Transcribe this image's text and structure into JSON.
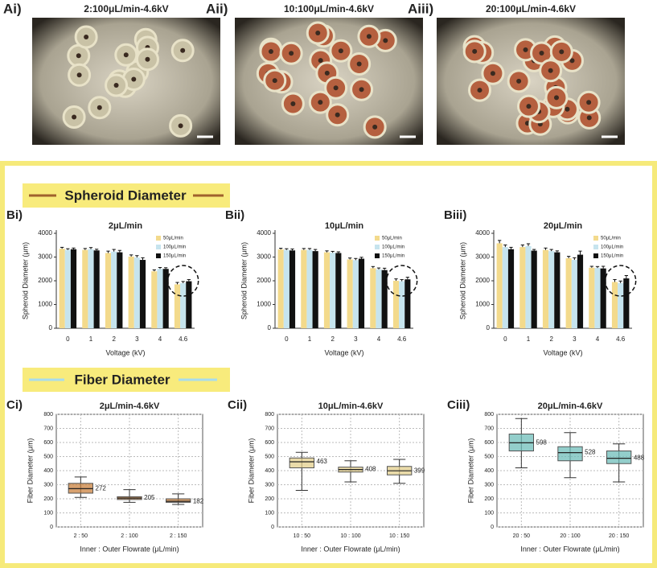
{
  "panels_a": [
    {
      "label": "Ai)",
      "title": "2:100μL/min-4.6kV"
    },
    {
      "label": "Aii)",
      "title": "10:100μL/min-4.6kV"
    },
    {
      "label": "Aiii)",
      "title": "20:100μL/min-4.6kV"
    }
  ],
  "section_titles": [
    "Spheroid Diameter",
    "Fiber Diameter"
  ],
  "chart_data": [
    {
      "type": "bar",
      "panel_label": "Bi)",
      "title": "2μL/min",
      "x_label": "Voltage (kV)",
      "y_label": "Spheroid  Diameter (μm)",
      "categories": [
        "0",
        "1",
        "2",
        "3",
        "4",
        "4.6"
      ],
      "series": [
        {
          "name": "50μL/min",
          "color": "#f3da8c",
          "values": [
            3350,
            3300,
            3170,
            3020,
            2400,
            1850
          ],
          "errors": [
            60,
            60,
            80,
            70,
            60,
            80
          ]
        },
        {
          "name": "100μL/min",
          "color": "#c6e4ee",
          "values": [
            3300,
            3330,
            3230,
            2980,
            2500,
            1900
          ],
          "errors": [
            50,
            70,
            90,
            80,
            60,
            70
          ]
        },
        {
          "name": "150μL/min",
          "color": "#111111",
          "values": [
            3330,
            3280,
            3200,
            2880,
            2500,
            1980
          ],
          "errors": [
            50,
            50,
            80,
            90,
            50,
            70
          ]
        }
      ],
      "ylim": [
        0,
        4000
      ],
      "yticks": [
        0,
        1000,
        2000,
        3000,
        4000
      ],
      "legend": "upper right"
    },
    {
      "type": "bar",
      "panel_label": "Bii)",
      "title": "10μL/min",
      "x_label": "Voltage (kV)",
      "y_label": "Spheroid  Diameter (μm)",
      "categories": [
        "0",
        "1",
        "2",
        "3",
        "4",
        "4.6"
      ],
      "series": [
        {
          "name": "50μL/min",
          "color": "#f3da8c",
          "values": [
            3320,
            3300,
            3200,
            2900,
            2530,
            2000
          ],
          "errors": [
            50,
            60,
            60,
            60,
            70,
            80
          ]
        },
        {
          "name": "100μL/min",
          "color": "#c6e4ee",
          "values": [
            3300,
            3300,
            3180,
            2870,
            2480,
            1980
          ],
          "errors": [
            50,
            60,
            60,
            70,
            60,
            70
          ]
        },
        {
          "name": "150μL/min",
          "color": "#111111",
          "values": [
            3280,
            3250,
            3170,
            2930,
            2450,
            2060
          ],
          "errors": [
            60,
            70,
            50,
            60,
            80,
            90
          ]
        }
      ],
      "ylim": [
        0,
        4000
      ],
      "yticks": [
        0,
        1000,
        2000,
        3000,
        4000
      ],
      "legend": "upper right"
    },
    {
      "type": "bar",
      "panel_label": "Biii)",
      "title": "20μL/min",
      "x_label": "Voltage (kV)",
      "y_label": "Spheroid  Diameter (μm)",
      "categories": [
        "0",
        "1",
        "2",
        "3",
        "4",
        "4.6"
      ],
      "series": [
        {
          "name": "50μL/min",
          "color": "#f3da8c",
          "values": [
            3580,
            3420,
            3300,
            2950,
            2550,
            1950
          ],
          "errors": [
            120,
            90,
            80,
            80,
            60,
            100
          ]
        },
        {
          "name": "100μL/min",
          "color": "#c6e4ee",
          "values": [
            3420,
            3460,
            3250,
            2880,
            2540,
            1900
          ],
          "errors": [
            90,
            100,
            70,
            90,
            60,
            90
          ]
        },
        {
          "name": "150μL/min",
          "color": "#111111",
          "values": [
            3330,
            3270,
            3200,
            3100,
            2520,
            2100
          ],
          "errors": [
            80,
            50,
            60,
            150,
            90,
            120
          ]
        }
      ],
      "ylim": [
        0,
        4000
      ],
      "yticks": [
        0,
        1000,
        2000,
        3000,
        4000
      ],
      "legend": "upper right"
    },
    {
      "type": "box",
      "panel_label": "Ci)",
      "title": "2μL/min-4.6kV",
      "x_label": "Inner : Outer Flowrate (μL/min)",
      "y_label": "Fiber Diameter (μm)",
      "categories": [
        "2 : 50",
        "2 : 100",
        "2 : 150"
      ],
      "color": "#c9823f",
      "boxes": [
        {
          "min": 210,
          "q1": 240,
          "median": 272,
          "q3": 310,
          "max": 355
        },
        {
          "min": 175,
          "q1": 195,
          "median": 205,
          "q3": 215,
          "max": 265
        },
        {
          "min": 160,
          "q1": 175,
          "median": 182,
          "q3": 200,
          "max": 235
        }
      ],
      "ylim": [
        0,
        800
      ],
      "yticks": [
        0,
        100,
        200,
        300,
        400,
        500,
        600,
        700,
        800
      ],
      "grid": true
    },
    {
      "type": "box",
      "panel_label": "Cii)",
      "title": "10μL/min-4.6kV",
      "x_label": "Inner : Outer Flowrate (μL/min)",
      "y_label": "Fiber Diameter (μm)",
      "categories": [
        "10 : 50",
        "10 : 100",
        "10 : 150"
      ],
      "color": "#e3cf8c",
      "boxes": [
        {
          "min": 260,
          "q1": 420,
          "median": 463,
          "q3": 490,
          "max": 530
        },
        {
          "min": 320,
          "q1": 390,
          "median": 408,
          "q3": 425,
          "max": 470
        },
        {
          "min": 310,
          "q1": 370,
          "median": 399,
          "q3": 430,
          "max": 480
        }
      ],
      "ylim": [
        0,
        800
      ],
      "yticks": [
        0,
        100,
        200,
        300,
        400,
        500,
        600,
        700,
        800
      ],
      "grid": true
    },
    {
      "type": "box",
      "panel_label": "Ciii)",
      "title": "20μL/min-4.6kV",
      "x_label": "Inner : Outer Flowrate (μL/min)",
      "y_label": "Fiber Diameter (μm)",
      "categories": [
        "20 : 50",
        "20 : 100",
        "20 : 150"
      ],
      "color": "#6fbdb9",
      "boxes": [
        {
          "min": 420,
          "q1": 540,
          "median": 598,
          "q3": 660,
          "max": 770
        },
        {
          "min": 350,
          "q1": 470,
          "median": 528,
          "q3": 570,
          "max": 670
        },
        {
          "min": 320,
          "q1": 450,
          "median": 488,
          "q3": 540,
          "max": 590
        }
      ],
      "ylim": [
        0,
        800
      ],
      "yticks": [
        0,
        100,
        200,
        300,
        400,
        500,
        600,
        700,
        800
      ],
      "grid": true
    }
  ]
}
